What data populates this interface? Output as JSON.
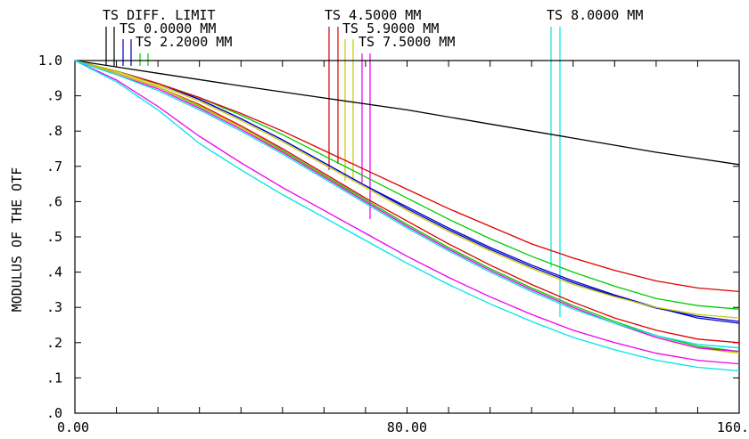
{
  "chart_data": {
    "type": "line",
    "title": "",
    "xlabel": "",
    "ylabel": "MODULUS OF THE OTF",
    "xlim": [
      0,
      160
    ],
    "ylim": [
      0,
      1
    ],
    "xticks": [
      0,
      80,
      160
    ],
    "xtick_labels": [
      "0.00",
      "80.00",
      "160.00"
    ],
    "yticks": [
      0,
      0.1,
      0.2,
      0.3,
      0.4,
      0.5,
      0.6,
      0.7,
      0.8,
      0.9,
      1.0
    ],
    "ytick_labels": [
      ".0",
      ".1",
      ".2",
      ".3",
      ".4",
      ".5",
      ".6",
      ".7",
      ".8",
      ".9",
      "1.0"
    ],
    "legend_labels": [
      {
        "text": "TS DIFF. LIMIT",
        "color": "#000000"
      },
      {
        "text": "TS 0.0000 MM",
        "color": "#0000cc"
      },
      {
        "text": "TS 2.2000 MM",
        "color": "#00cc00"
      },
      {
        "text": "TS 4.5000 MM",
        "color": "#dd0000"
      },
      {
        "text": "TS 5.9000 MM",
        "color": "#cccc00"
      },
      {
        "text": "TS 7.5000 MM",
        "color": "#ee00ee"
      },
      {
        "text": "TS 8.0000 MM",
        "color": "#00e5e5"
      }
    ],
    "series": [
      {
        "color": "#000000",
        "x": [
          0,
          20,
          40,
          60,
          80,
          100,
          120,
          140,
          160
        ],
        "y": [
          1.0,
          0.964,
          0.928,
          0.894,
          0.86,
          0.82,
          0.78,
          0.74,
          0.705
        ]
      },
      {
        "color": "#0000cc",
        "x": [
          0,
          10,
          20,
          30,
          40,
          50,
          60,
          70,
          80,
          90,
          100,
          110,
          120,
          130,
          140,
          150,
          160
        ],
        "y": [
          1.0,
          0.97,
          0.935,
          0.89,
          0.835,
          0.775,
          0.71,
          0.645,
          0.585,
          0.525,
          0.47,
          0.42,
          0.375,
          0.335,
          0.3,
          0.27,
          0.255
        ]
      },
      {
        "color": "#0000cc",
        "x": [
          0,
          10,
          20,
          30,
          40,
          50,
          60,
          70,
          80,
          90,
          100,
          110,
          120,
          130,
          140,
          150,
          160
        ],
        "y": [
          1.0,
          0.97,
          0.935,
          0.89,
          0.835,
          0.775,
          0.71,
          0.645,
          0.58,
          0.52,
          0.465,
          0.415,
          0.37,
          0.332,
          0.298,
          0.275,
          0.26
        ]
      },
      {
        "color": "#00cc00",
        "x": [
          0,
          10,
          20,
          30,
          40,
          50,
          60,
          70,
          80,
          90,
          100,
          110,
          120,
          130,
          140,
          150,
          160
        ],
        "y": [
          1.0,
          0.97,
          0.935,
          0.895,
          0.845,
          0.79,
          0.73,
          0.67,
          0.61,
          0.55,
          0.495,
          0.445,
          0.4,
          0.36,
          0.325,
          0.305,
          0.295
        ]
      },
      {
        "color": "#00cc00",
        "x": [
          0,
          10,
          20,
          30,
          40,
          50,
          60,
          70,
          80,
          90,
          100,
          110,
          120,
          130,
          140,
          150,
          160
        ],
        "y": [
          1.0,
          0.965,
          0.925,
          0.87,
          0.81,
          0.745,
          0.675,
          0.605,
          0.535,
          0.47,
          0.41,
          0.355,
          0.305,
          0.26,
          0.22,
          0.19,
          0.175
        ]
      },
      {
        "color": "#dd0000",
        "x": [
          0,
          10,
          20,
          30,
          40,
          50,
          60,
          70,
          80,
          90,
          100,
          110,
          120,
          130,
          140,
          150,
          160
        ],
        "y": [
          1.0,
          0.97,
          0.935,
          0.895,
          0.85,
          0.8,
          0.745,
          0.69,
          0.635,
          0.58,
          0.53,
          0.48,
          0.44,
          0.405,
          0.375,
          0.355,
          0.345
        ]
      },
      {
        "color": "#dd0000",
        "x": [
          0,
          10,
          20,
          30,
          40,
          50,
          60,
          70,
          80,
          90,
          100,
          110,
          120,
          130,
          140,
          150,
          160
        ],
        "y": [
          1.0,
          0.965,
          0.925,
          0.875,
          0.815,
          0.75,
          0.68,
          0.61,
          0.545,
          0.48,
          0.42,
          0.365,
          0.315,
          0.27,
          0.235,
          0.21,
          0.2
        ]
      },
      {
        "color": "#cccc00",
        "x": [
          0,
          10,
          20,
          30,
          40,
          50,
          60,
          70,
          80,
          90,
          100,
          110,
          120,
          130,
          140,
          150,
          160
        ],
        "y": [
          1.0,
          0.97,
          0.93,
          0.885,
          0.83,
          0.77,
          0.705,
          0.64,
          0.575,
          0.515,
          0.46,
          0.41,
          0.365,
          0.33,
          0.3,
          0.28,
          0.27
        ]
      },
      {
        "color": "#cccc00",
        "x": [
          0,
          10,
          20,
          30,
          40,
          50,
          60,
          70,
          80,
          90,
          100,
          110,
          120,
          130,
          140,
          150,
          160
        ],
        "y": [
          1.0,
          0.965,
          0.925,
          0.872,
          0.81,
          0.742,
          0.672,
          0.6,
          0.53,
          0.465,
          0.405,
          0.35,
          0.3,
          0.255,
          0.215,
          0.185,
          0.17
        ]
      },
      {
        "color": "#ee00ee",
        "x": [
          0,
          10,
          20,
          30,
          40,
          50,
          60,
          70,
          80,
          90,
          100,
          110,
          120,
          130,
          140,
          150,
          160
        ],
        "y": [
          1.0,
          0.96,
          0.92,
          0.865,
          0.805,
          0.74,
          0.67,
          0.6,
          0.53,
          0.465,
          0.405,
          0.35,
          0.3,
          0.255,
          0.215,
          0.185,
          0.175
        ]
      },
      {
        "color": "#ee00ee",
        "x": [
          0,
          10,
          20,
          30,
          40,
          50,
          60,
          70,
          80,
          90,
          100,
          110,
          120,
          130,
          140,
          150,
          160
        ],
        "y": [
          1.0,
          0.945,
          0.87,
          0.785,
          0.71,
          0.64,
          0.575,
          0.51,
          0.445,
          0.385,
          0.33,
          0.28,
          0.235,
          0.2,
          0.17,
          0.15,
          0.14
        ]
      },
      {
        "color": "#00e5e5",
        "x": [
          0,
          10,
          20,
          30,
          40,
          50,
          60,
          70,
          80,
          90,
          100,
          110,
          120,
          130,
          140,
          150,
          160
        ],
        "y": [
          1.0,
          0.96,
          0.915,
          0.86,
          0.8,
          0.735,
          0.665,
          0.595,
          0.525,
          0.46,
          0.4,
          0.345,
          0.295,
          0.255,
          0.22,
          0.195,
          0.185
        ]
      },
      {
        "color": "#00e5e5",
        "x": [
          0,
          10,
          20,
          30,
          40,
          50,
          60,
          70,
          80,
          90,
          100,
          110,
          120,
          130,
          140,
          150,
          160
        ],
        "y": [
          1.0,
          0.94,
          0.86,
          0.765,
          0.69,
          0.62,
          0.555,
          0.49,
          0.425,
          0.365,
          0.31,
          0.26,
          0.215,
          0.18,
          0.15,
          0.13,
          0.12
        ]
      }
    ],
    "grid": false,
    "legend_position": "top"
  }
}
